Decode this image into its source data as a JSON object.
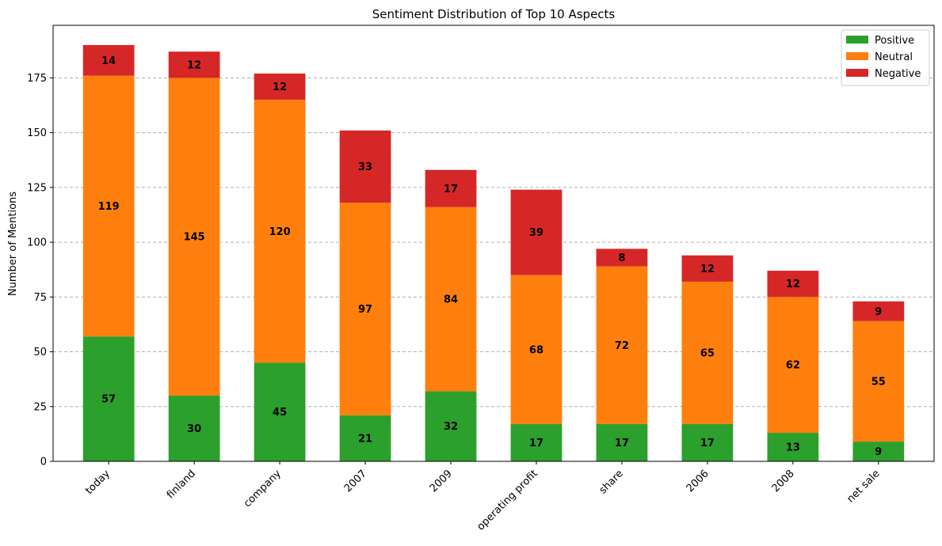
{
  "chart_data": {
    "type": "bar",
    "stacked": true,
    "title": "Sentiment Distribution of Top 10 Aspects",
    "xlabel": "",
    "ylabel": "Number of Mentions",
    "ylim": [
      0,
      200
    ],
    "yticks": [
      0,
      25,
      50,
      75,
      100,
      125,
      150,
      175
    ],
    "grid": "y-dashed",
    "legend_position": "top-right",
    "categories": [
      "today",
      "finland",
      "company",
      "2007",
      "2009",
      "operating profit",
      "share",
      "2006",
      "2008",
      "net sale"
    ],
    "series": [
      {
        "name": "Positive",
        "color": "#2ca02c",
        "values": [
          57,
          30,
          45,
          21,
          32,
          17,
          17,
          17,
          13,
          9
        ]
      },
      {
        "name": "Neutral",
        "color": "#ff7f0e",
        "values": [
          119,
          145,
          120,
          97,
          84,
          68,
          72,
          65,
          62,
          55
        ]
      },
      {
        "name": "Negative",
        "color": "#d62728",
        "values": [
          14,
          12,
          12,
          33,
          17,
          39,
          8,
          12,
          12,
          9
        ]
      }
    ]
  }
}
